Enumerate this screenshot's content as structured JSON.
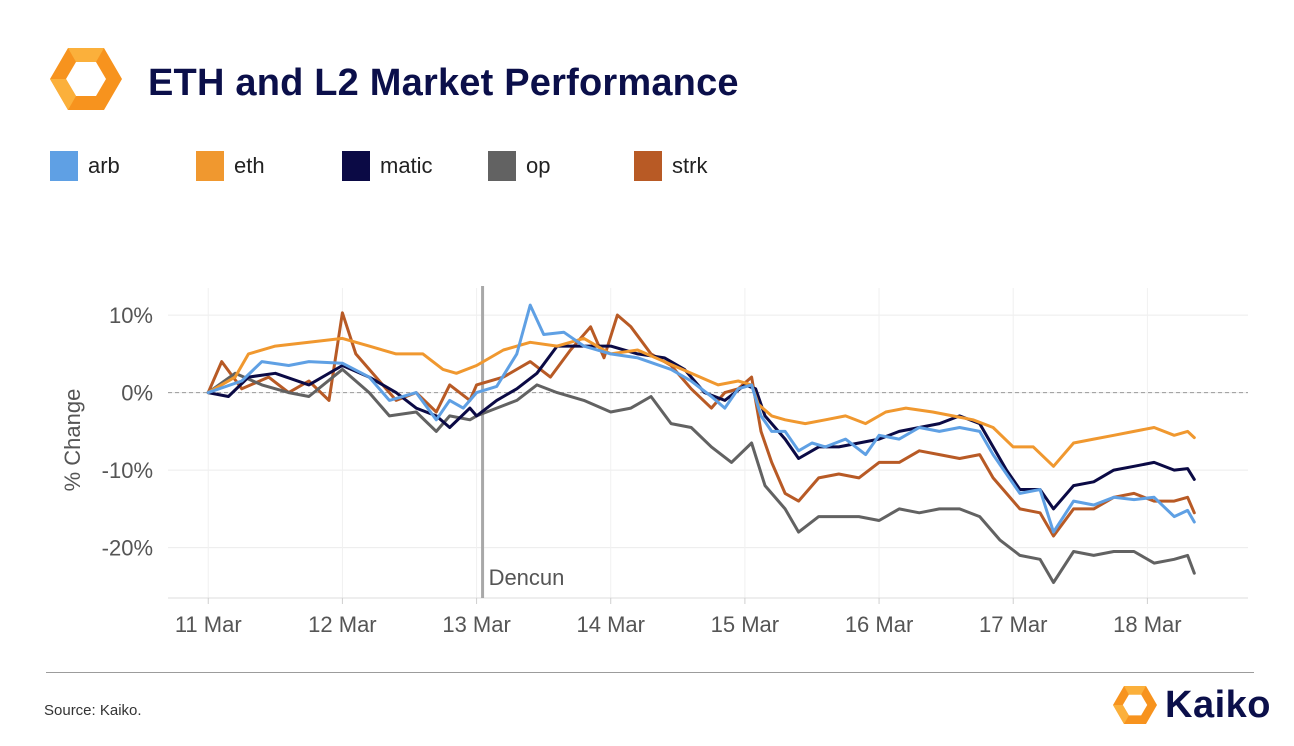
{
  "header": {
    "title": "ETH and L2 Market Performance",
    "logo_icon": "kaiko-hexagon-icon"
  },
  "footer": {
    "source": "Source: Kaiko.",
    "brand_name": "Kaiko",
    "brand_icon": "kaiko-hexagon-icon"
  },
  "colors": {
    "title": "#0b0f4a",
    "logo_orange": "#f7931e",
    "logo_yellow": "#fbb03b"
  },
  "chart_data": {
    "type": "line",
    "title": "ETH and L2 Market Performance",
    "xlabel": "",
    "ylabel": "% Change",
    "categories": [
      "11 Mar",
      "12 Mar",
      "13 Mar",
      "14 Mar",
      "15 Mar",
      "16 Mar",
      "17 Mar",
      "18 Mar"
    ],
    "x_range": [
      10.7,
      18.75
    ],
    "ylim": [
      -26.5,
      13.5
    ],
    "yticks": [
      10,
      0,
      -10,
      -20
    ],
    "ytick_labels": [
      "10%",
      "0%",
      "-10%",
      "-20%"
    ],
    "grid": true,
    "legend": "top-left",
    "reference_line": {
      "y": 0,
      "style": "dashed"
    },
    "annotations": [
      {
        "x": 13.0,
        "label": "Dencun",
        "type": "vertical-line"
      }
    ],
    "series": [
      {
        "name": "arb",
        "color": "#5fa0e4",
        "points": [
          [
            11.0,
            0
          ],
          [
            11.25,
            1.5
          ],
          [
            11.4,
            4
          ],
          [
            11.6,
            3.5
          ],
          [
            11.75,
            4
          ],
          [
            12.0,
            3.8
          ],
          [
            12.2,
            2
          ],
          [
            12.35,
            -1
          ],
          [
            12.55,
            0
          ],
          [
            12.7,
            -3.5
          ],
          [
            12.8,
            -1
          ],
          [
            12.9,
            -2
          ],
          [
            13.0,
            0
          ],
          [
            13.15,
            0.8
          ],
          [
            13.3,
            5
          ],
          [
            13.4,
            11.3
          ],
          [
            13.5,
            7.5
          ],
          [
            13.65,
            7.8
          ],
          [
            13.8,
            6
          ],
          [
            14.0,
            5
          ],
          [
            14.2,
            4.5
          ],
          [
            14.45,
            3
          ],
          [
            14.6,
            1.5
          ],
          [
            14.75,
            -0.5
          ],
          [
            14.85,
            -2
          ],
          [
            14.95,
            0.5
          ],
          [
            15.05,
            1
          ],
          [
            15.12,
            -3
          ],
          [
            15.2,
            -5
          ],
          [
            15.3,
            -5
          ],
          [
            15.4,
            -7.5
          ],
          [
            15.5,
            -6.5
          ],
          [
            15.6,
            -7
          ],
          [
            15.75,
            -6
          ],
          [
            15.9,
            -8
          ],
          [
            16.0,
            -5.5
          ],
          [
            16.15,
            -6
          ],
          [
            16.3,
            -4.5
          ],
          [
            16.45,
            -5
          ],
          [
            16.6,
            -4.5
          ],
          [
            16.75,
            -5
          ],
          [
            16.85,
            -8
          ],
          [
            16.95,
            -10.5
          ],
          [
            17.05,
            -13
          ],
          [
            17.2,
            -12.5
          ],
          [
            17.3,
            -18
          ],
          [
            17.45,
            -14
          ],
          [
            17.6,
            -14.5
          ],
          [
            17.75,
            -13.5
          ],
          [
            17.9,
            -13.8
          ],
          [
            18.05,
            -13.5
          ],
          [
            18.2,
            -16
          ],
          [
            18.3,
            -15.2
          ],
          [
            18.35,
            -16.7
          ]
        ]
      },
      {
        "name": "eth",
        "color": "#f0982f",
        "points": [
          [
            11.0,
            0
          ],
          [
            11.2,
            2
          ],
          [
            11.3,
            5
          ],
          [
            11.5,
            6
          ],
          [
            11.75,
            6.5
          ],
          [
            12.0,
            7
          ],
          [
            12.2,
            6
          ],
          [
            12.4,
            5
          ],
          [
            12.6,
            5
          ],
          [
            12.75,
            3
          ],
          [
            12.85,
            2.5
          ],
          [
            13.0,
            3.5
          ],
          [
            13.2,
            5.5
          ],
          [
            13.4,
            6.5
          ],
          [
            13.6,
            6
          ],
          [
            13.8,
            7
          ],
          [
            14.0,
            5
          ],
          [
            14.2,
            5.5
          ],
          [
            14.4,
            4
          ],
          [
            14.6,
            2.5
          ],
          [
            14.8,
            1
          ],
          [
            14.95,
            1.5
          ],
          [
            15.05,
            1
          ],
          [
            15.1,
            -1.5
          ],
          [
            15.2,
            -3
          ],
          [
            15.3,
            -3.5
          ],
          [
            15.45,
            -4
          ],
          [
            15.6,
            -3.5
          ],
          [
            15.75,
            -3
          ],
          [
            15.9,
            -4
          ],
          [
            16.05,
            -2.5
          ],
          [
            16.2,
            -2
          ],
          [
            16.4,
            -2.5
          ],
          [
            16.55,
            -3
          ],
          [
            16.7,
            -3.5
          ],
          [
            16.85,
            -4.5
          ],
          [
            17.0,
            -7
          ],
          [
            17.15,
            -7
          ],
          [
            17.3,
            -9.5
          ],
          [
            17.45,
            -6.5
          ],
          [
            17.6,
            -6
          ],
          [
            17.75,
            -5.5
          ],
          [
            17.9,
            -5
          ],
          [
            18.05,
            -4.5
          ],
          [
            18.2,
            -5.5
          ],
          [
            18.3,
            -5
          ],
          [
            18.35,
            -5.8
          ]
        ]
      },
      {
        "name": "matic",
        "color": "#0b0a45",
        "points": [
          [
            11.0,
            0
          ],
          [
            11.15,
            -0.5
          ],
          [
            11.3,
            2
          ],
          [
            11.5,
            2.5
          ],
          [
            11.75,
            1
          ],
          [
            12.0,
            3.5
          ],
          [
            12.2,
            2
          ],
          [
            12.4,
            0
          ],
          [
            12.55,
            -2
          ],
          [
            12.7,
            -3
          ],
          [
            12.8,
            -4.5
          ],
          [
            12.95,
            -2
          ],
          [
            13.0,
            -3
          ],
          [
            13.15,
            -1
          ],
          [
            13.3,
            0.5
          ],
          [
            13.45,
            2.5
          ],
          [
            13.6,
            6
          ],
          [
            13.8,
            6
          ],
          [
            14.0,
            6
          ],
          [
            14.2,
            5
          ],
          [
            14.4,
            4.5
          ],
          [
            14.55,
            3
          ],
          [
            14.7,
            0
          ],
          [
            14.85,
            -1
          ],
          [
            15.0,
            1
          ],
          [
            15.08,
            0.5
          ],
          [
            15.15,
            -3
          ],
          [
            15.3,
            -6
          ],
          [
            15.4,
            -8.5
          ],
          [
            15.55,
            -7
          ],
          [
            15.7,
            -7
          ],
          [
            15.85,
            -6.5
          ],
          [
            16.0,
            -6
          ],
          [
            16.15,
            -5
          ],
          [
            16.3,
            -4.5
          ],
          [
            16.45,
            -4
          ],
          [
            16.6,
            -3
          ],
          [
            16.75,
            -4
          ],
          [
            16.85,
            -7
          ],
          [
            16.95,
            -10
          ],
          [
            17.05,
            -12.5
          ],
          [
            17.2,
            -12.5
          ],
          [
            17.3,
            -15
          ],
          [
            17.45,
            -12
          ],
          [
            17.6,
            -11.5
          ],
          [
            17.75,
            -10
          ],
          [
            17.9,
            -9.5
          ],
          [
            18.05,
            -9
          ],
          [
            18.2,
            -10
          ],
          [
            18.3,
            -9.8
          ],
          [
            18.35,
            -11.2
          ]
        ]
      },
      {
        "name": "op",
        "color": "#626262",
        "points": [
          [
            11.0,
            0
          ],
          [
            11.2,
            2.5
          ],
          [
            11.4,
            1
          ],
          [
            11.6,
            0
          ],
          [
            11.75,
            -0.5
          ],
          [
            12.0,
            3
          ],
          [
            12.2,
            0
          ],
          [
            12.35,
            -3
          ],
          [
            12.55,
            -2.5
          ],
          [
            12.7,
            -5
          ],
          [
            12.8,
            -3
          ],
          [
            12.95,
            -3.5
          ],
          [
            13.0,
            -3
          ],
          [
            13.15,
            -2
          ],
          [
            13.3,
            -1
          ],
          [
            13.45,
            1
          ],
          [
            13.6,
            0
          ],
          [
            13.8,
            -1
          ],
          [
            14.0,
            -2.5
          ],
          [
            14.15,
            -2
          ],
          [
            14.3,
            -0.5
          ],
          [
            14.45,
            -4
          ],
          [
            14.6,
            -4.5
          ],
          [
            14.75,
            -7
          ],
          [
            14.9,
            -9
          ],
          [
            15.05,
            -6.5
          ],
          [
            15.15,
            -12
          ],
          [
            15.3,
            -15
          ],
          [
            15.4,
            -18
          ],
          [
            15.55,
            -16
          ],
          [
            15.7,
            -16
          ],
          [
            15.85,
            -16
          ],
          [
            16.0,
            -16.5
          ],
          [
            16.15,
            -15
          ],
          [
            16.3,
            -15.5
          ],
          [
            16.45,
            -15
          ],
          [
            16.6,
            -15
          ],
          [
            16.75,
            -16
          ],
          [
            16.9,
            -19
          ],
          [
            17.05,
            -21
          ],
          [
            17.2,
            -21.5
          ],
          [
            17.3,
            -24.5
          ],
          [
            17.45,
            -20.5
          ],
          [
            17.6,
            -21
          ],
          [
            17.75,
            -20.5
          ],
          [
            17.9,
            -20.5
          ],
          [
            18.05,
            -22
          ],
          [
            18.2,
            -21.5
          ],
          [
            18.3,
            -21
          ],
          [
            18.35,
            -23.3
          ]
        ]
      },
      {
        "name": "strk",
        "color": "#b85a25",
        "points": [
          [
            11.0,
            0
          ],
          [
            11.1,
            4
          ],
          [
            11.25,
            0.5
          ],
          [
            11.45,
            2
          ],
          [
            11.6,
            0
          ],
          [
            11.75,
            1.5
          ],
          [
            11.9,
            -1
          ],
          [
            12.0,
            10.3
          ],
          [
            12.1,
            5
          ],
          [
            12.25,
            2
          ],
          [
            12.4,
            -1
          ],
          [
            12.55,
            0
          ],
          [
            12.7,
            -2.5
          ],
          [
            12.8,
            1
          ],
          [
            12.95,
            -1
          ],
          [
            13.0,
            1
          ],
          [
            13.2,
            2
          ],
          [
            13.4,
            4
          ],
          [
            13.55,
            2
          ],
          [
            13.7,
            5.5
          ],
          [
            13.85,
            8.5
          ],
          [
            13.95,
            4.5
          ],
          [
            14.05,
            10
          ],
          [
            14.15,
            8.5
          ],
          [
            14.3,
            5
          ],
          [
            14.45,
            3.5
          ],
          [
            14.6,
            0.5
          ],
          [
            14.75,
            -2
          ],
          [
            14.85,
            0
          ],
          [
            14.95,
            0.5
          ],
          [
            15.05,
            2
          ],
          [
            15.12,
            -5
          ],
          [
            15.2,
            -9
          ],
          [
            15.3,
            -13
          ],
          [
            15.4,
            -14
          ],
          [
            15.55,
            -11
          ],
          [
            15.7,
            -10.5
          ],
          [
            15.85,
            -11
          ],
          [
            16.0,
            -9
          ],
          [
            16.15,
            -9
          ],
          [
            16.3,
            -7.5
          ],
          [
            16.45,
            -8
          ],
          [
            16.6,
            -8.5
          ],
          [
            16.75,
            -8
          ],
          [
            16.85,
            -11
          ],
          [
            16.95,
            -13
          ],
          [
            17.05,
            -15
          ],
          [
            17.2,
            -15.5
          ],
          [
            17.3,
            -18.5
          ],
          [
            17.45,
            -15
          ],
          [
            17.6,
            -15
          ],
          [
            17.75,
            -13.5
          ],
          [
            17.9,
            -13
          ],
          [
            18.05,
            -14
          ],
          [
            18.2,
            -14
          ],
          [
            18.3,
            -13.5
          ],
          [
            18.35,
            -15.5
          ]
        ]
      }
    ]
  }
}
